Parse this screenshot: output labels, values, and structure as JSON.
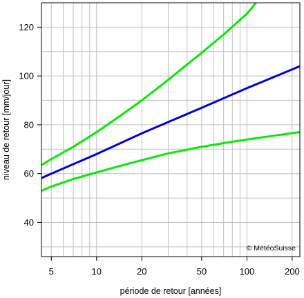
{
  "chart_data": {
    "type": "line",
    "xlabel": "période de retour [années]",
    "ylabel": "niveau de retour [mm/jour]",
    "x_scale": "log",
    "xlim": [
      4.3,
      225
    ],
    "ylim": [
      26,
      130
    ],
    "x_ticks": [
      5,
      10,
      20,
      50,
      100,
      200
    ],
    "y_ticks": [
      40,
      60,
      80,
      100,
      120
    ],
    "x_minor_grid": [
      6,
      7,
      8,
      9,
      30,
      40,
      60,
      70,
      80,
      90
    ],
    "y_minor_grid": [
      30,
      50,
      70,
      90,
      110,
      130
    ],
    "grid": true,
    "annotation": "© MétéoSuisse",
    "series": [
      {
        "color": "#00ee00",
        "role": "upper",
        "x": [
          4.3,
          5,
          7,
          10,
          15,
          20,
          30,
          50,
          70,
          100,
          115
        ],
        "y": [
          63.5,
          66,
          71,
          77,
          84.5,
          90,
          98.5,
          109.5,
          117,
          125.5,
          130
        ]
      },
      {
        "color": "#0000dd",
        "role": "estimate",
        "x": [
          4.3,
          5,
          10,
          20,
          50,
          100,
          225
        ],
        "y": [
          58.2,
          60,
          68,
          76.5,
          87,
          95,
          104
        ]
      },
      {
        "color": "#00ee00",
        "role": "lower",
        "x": [
          4.3,
          5,
          7,
          10,
          15,
          20,
          30,
          50,
          70,
          100,
          150,
          225
        ],
        "y": [
          53,
          54.7,
          57.8,
          60.5,
          63.5,
          65.5,
          68.3,
          71,
          72.5,
          74,
          75.5,
          77
        ]
      }
    ]
  }
}
